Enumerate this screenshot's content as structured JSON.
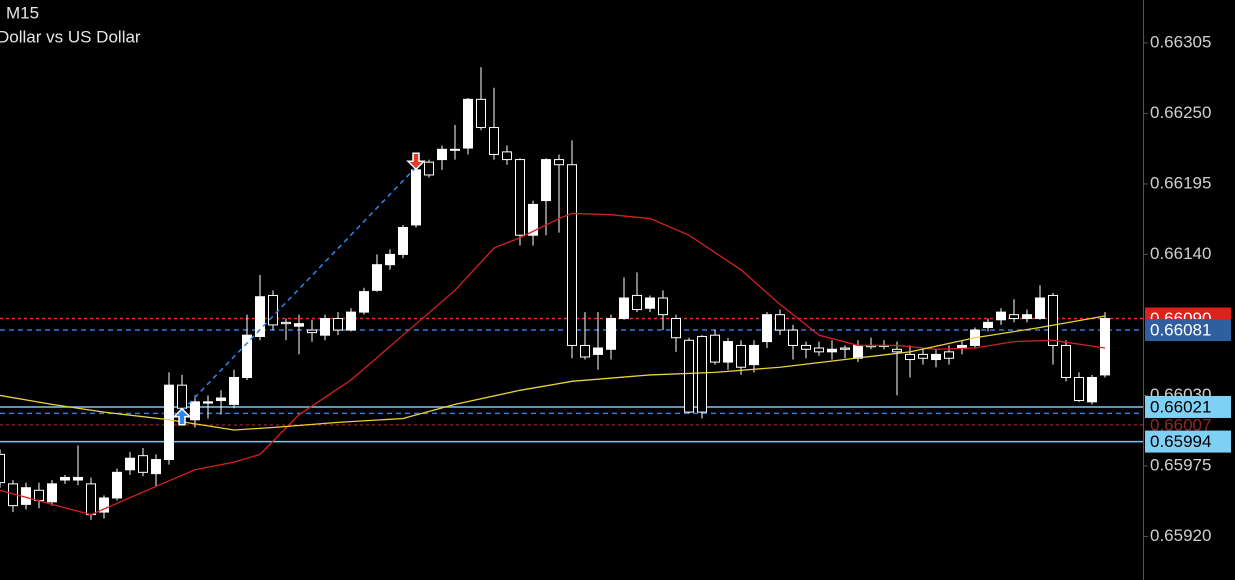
{
  "chart_data": {
    "type": "candlestick",
    "title": "M15",
    "subtitle": "Dollar vs US Dollar",
    "up_color": "#ffffff",
    "down_color": "#000000",
    "wick_color": "#ffffff",
    "open": [
      0.65984,
      0.65961,
      0.65945,
      0.65956,
      0.65947,
      0.65964,
      0.65964,
      0.65961,
      0.65939,
      0.6595,
      0.65972,
      0.65983,
      0.65969,
      0.6598,
      0.66038,
      0.66011,
      0.66024,
      0.66026,
      0.66023,
      0.66044,
      0.66076,
      0.66108,
      0.66087,
      0.66084,
      0.66081,
      0.66077,
      0.6609,
      0.66081,
      0.66095,
      0.66112,
      0.66132,
      0.6614,
      0.66163,
      0.66212,
      0.66214,
      0.66222,
      0.66223,
      0.66261,
      0.66239,
      0.6622,
      0.66214,
      0.66155,
      0.66182,
      0.66214,
      0.6621,
      0.66069,
      0.66062,
      0.66066,
      0.6609,
      0.66108,
      0.66098,
      0.66106,
      0.6609,
      0.66073,
      0.66076,
      0.66077,
      0.66056,
      0.66069,
      0.66054,
      0.66072,
      0.66093,
      0.66081,
      0.66069,
      0.66067,
      0.66064,
      0.66067,
      0.66059,
      0.66069,
      0.66069,
      0.66066,
      0.66062,
      0.66062,
      0.66058,
      0.66064,
      0.66067,
      0.66069,
      0.66083,
      0.66089,
      0.66093,
      0.6609,
      0.6609,
      0.66108,
      0.66069,
      0.66044,
      0.66025,
      0.66046
    ],
    "high": [
      0.65988,
      0.65964,
      0.65962,
      0.65962,
      0.65964,
      0.65968,
      0.65991,
      0.65966,
      0.65952,
      0.65973,
      0.65986,
      0.65989,
      0.65984,
      0.66048,
      0.66046,
      0.6603,
      0.6603,
      0.66034,
      0.6605,
      0.66093,
      0.66124,
      0.66112,
      0.6609,
      0.66093,
      0.66089,
      0.66093,
      0.66095,
      0.66098,
      0.66114,
      0.6614,
      0.66144,
      0.66163,
      0.66214,
      0.66214,
      0.66225,
      0.66241,
      0.66262,
      0.66286,
      0.6627,
      0.66225,
      0.66215,
      0.66182,
      0.66215,
      0.66218,
      0.66229,
      0.66095,
      0.66095,
      0.66093,
      0.66122,
      0.66126,
      0.66108,
      0.66112,
      0.66093,
      0.66075,
      0.66077,
      0.66081,
      0.66075,
      0.66073,
      0.66073,
      0.66095,
      0.66097,
      0.66085,
      0.66072,
      0.66072,
      0.66073,
      0.66069,
      0.66073,
      0.66075,
      0.66073,
      0.66072,
      0.66069,
      0.66067,
      0.66066,
      0.66069,
      0.66073,
      0.66083,
      0.6609,
      0.66098,
      0.66105,
      0.66097,
      0.66116,
      0.6611,
      0.66073,
      0.66048,
      0.66046,
      0.66095
    ],
    "low": [
      0.65958,
      0.65939,
      0.65941,
      0.65942,
      0.65944,
      0.65961,
      0.6596,
      0.65933,
      0.65934,
      0.65948,
      0.65968,
      0.65967,
      0.65959,
      0.65976,
      0.66007,
      0.66005,
      0.66012,
      0.66015,
      0.6602,
      0.66042,
      0.66073,
      0.66081,
      0.66073,
      0.66062,
      0.66072,
      0.66073,
      0.66077,
      0.6608,
      0.66093,
      0.66111,
      0.66128,
      0.66137,
      0.66161,
      0.662,
      0.66206,
      0.66214,
      0.66218,
      0.66237,
      0.66214,
      0.6621,
      0.66147,
      0.66147,
      0.66155,
      0.66157,
      0.66059,
      0.66058,
      0.6605,
      0.66058,
      0.66089,
      0.66095,
      0.66095,
      0.66081,
      0.66064,
      0.66016,
      0.66012,
      0.66054,
      0.6605,
      0.66046,
      0.66048,
      0.66067,
      0.66077,
      0.66058,
      0.66059,
      0.66061,
      0.66058,
      0.66059,
      0.66056,
      0.66066,
      0.66066,
      0.6603,
      0.66044,
      0.66054,
      0.66052,
      0.66054,
      0.66062,
      0.66067,
      0.6608,
      0.66085,
      0.66087,
      0.66087,
      0.66089,
      0.66054,
      0.66041,
      0.66025,
      0.66023,
      0.66044
    ],
    "close": [
      0.65962,
      0.65944,
      0.65958,
      0.65948,
      0.65961,
      0.65966,
      0.65966,
      0.65937,
      0.6595,
      0.6597,
      0.65981,
      0.6597,
      0.6598,
      0.66038,
      0.6602,
      0.66025,
      0.66025,
      0.66028,
      0.66044,
      0.66077,
      0.66107,
      0.66085,
      0.66086,
      0.66086,
      0.66079,
      0.6609,
      0.66081,
      0.66095,
      0.66111,
      0.66132,
      0.6614,
      0.66161,
      0.66206,
      0.66202,
      0.66222,
      0.66222,
      0.66261,
      0.66239,
      0.66218,
      0.66214,
      0.66155,
      0.66179,
      0.66214,
      0.6621,
      0.66069,
      0.6606,
      0.66067,
      0.6609,
      0.66106,
      0.66097,
      0.66106,
      0.66093,
      0.66075,
      0.66017,
      0.66017,
      0.66056,
      0.66072,
      0.66052,
      0.66069,
      0.66093,
      0.66081,
      0.66069,
      0.66066,
      0.66064,
      0.66066,
      0.66066,
      0.66069,
      0.66068,
      0.66069,
      0.66064,
      0.66058,
      0.66059,
      0.66062,
      0.66059,
      0.66069,
      0.66081,
      0.66087,
      0.66095,
      0.6609,
      0.66093,
      0.66106,
      0.66069,
      0.66044,
      0.66026,
      0.66044,
      0.6609
    ],
    "overlays": [
      {
        "color": "#d32020",
        "x": [
          0,
          4,
          7,
          12,
          15,
          18,
          20,
          23,
          27,
          31,
          35,
          38,
          40,
          43,
          44,
          47,
          50,
          53,
          57,
          60,
          63,
          66,
          69,
          72,
          75,
          78,
          81,
          85
        ],
        "values": [
          0.65956,
          0.65945,
          0.65937,
          0.65959,
          0.65972,
          0.65978,
          0.65984,
          0.66015,
          0.66042,
          0.66077,
          0.66112,
          0.66145,
          0.66153,
          0.66168,
          0.66172,
          0.66171,
          0.66168,
          0.66155,
          0.66128,
          0.66101,
          0.66077,
          0.66069,
          0.66069,
          0.66066,
          0.66067,
          0.66072,
          0.66073,
          0.66067
        ]
      },
      {
        "color": "#e8d23a",
        "x": [
          0,
          4,
          8,
          13,
          18,
          21,
          26,
          31,
          35,
          40,
          44,
          50,
          55,
          60,
          65,
          70,
          75,
          80,
          85
        ],
        "values": [
          0.6603,
          0.66023,
          0.66017,
          0.66011,
          0.66003,
          0.66005,
          0.66009,
          0.66012,
          0.66023,
          0.66034,
          0.66041,
          0.66046,
          0.66048,
          0.66052,
          0.66058,
          0.66064,
          0.66075,
          0.66083,
          0.66092
        ]
      }
    ],
    "levels": [
      {
        "value": 0.66016,
        "color": "#3a78d8",
        "style": "dashed"
      },
      {
        "value": 0.66007,
        "label": "0.66007",
        "color": "#7a1e1e",
        "style": "dotted",
        "text_color": "#8a2a22"
      },
      {
        "value": 0.6609,
        "label": "0.66090",
        "color": "#e0302a",
        "style": "dotted",
        "box_color": "#e0201b",
        "text_color": "#ffffff"
      },
      {
        "value": 0.66081,
        "label": "0.66081",
        "color": "#3a78d8",
        "style": "dashed",
        "box_color": "#2f5f9e",
        "text_color": "#ffffff"
      },
      {
        "value": 0.66021,
        "label": "0.66021",
        "color": "#7cc8ef",
        "style": "solid",
        "box_color": "#7fd0f5",
        "text_color": "#000000"
      },
      {
        "value": 0.65994,
        "label": "0.65994",
        "color": "#7cc8ef",
        "style": "solid",
        "box_color": "#7fd0f5",
        "text_color": "#000000"
      }
    ],
    "trades": [
      {
        "side": "buy",
        "x": 14,
        "price": 0.66018,
        "color": "#2f86f0"
      },
      {
        "side": "sell",
        "x": 32,
        "price": 0.66208,
        "color": "#e53a2a"
      }
    ],
    "ylim": [
      0.65886,
      0.663385
    ],
    "yticks": [
      0.66305,
      {
        "value": 0.6625,
        "label": "0.66250"
      },
      0.66195,
      {
        "value": 0.6614,
        "label": "0.66140"
      },
      {
        "value": 0.6603,
        "label": "0.66030"
      },
      0.65975,
      {
        "value": 0.6592,
        "label": "0.65920"
      }
    ]
  }
}
